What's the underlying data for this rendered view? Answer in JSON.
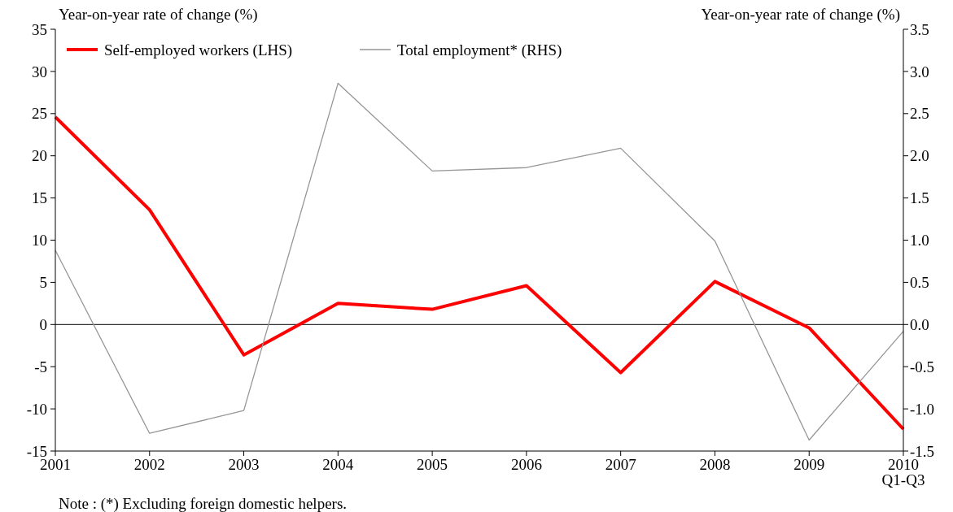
{
  "chart_data": {
    "type": "line",
    "categories": [
      "2001",
      "2002",
      "2003",
      "2004",
      "2005",
      "2006",
      "2007",
      "2008",
      "2009",
      "2010\nQ1-Q3"
    ],
    "series": [
      {
        "name": "Self-employed workers (LHS)",
        "color": "#ff0000",
        "values": [
          24.6,
          13.6,
          -3.6,
          2.5,
          1.8,
          4.6,
          -5.7,
          5.1,
          -0.4,
          -12.4
        ]
      },
      {
        "name": "Total employment* (RHS)",
        "color": "#969696",
        "axis": "y2",
        "values": [
          0.88,
          -1.29,
          -1.02,
          2.86,
          1.82,
          1.86,
          2.09,
          0.99,
          -1.37,
          -0.08
        ]
      }
    ],
    "ylabel": "Year-on-year rate of change (%)",
    "y2label": "Year-on-year rate of change (%)",
    "ylim": [
      -15,
      35
    ],
    "yticks": [
      -15,
      -10,
      -5,
      0,
      5,
      10,
      15,
      20,
      25,
      30,
      35
    ],
    "y2lim": [
      -1.5,
      3.5
    ],
    "y2ticks": [
      {
        "value": -1.5,
        "label": "-1.5"
      },
      {
        "value": -1,
        "label": "-1.0"
      },
      {
        "value": -0.5,
        "label": "-0.5"
      },
      {
        "value": 0,
        "label": "0.0"
      },
      {
        "value": 0.5,
        "label": "0.5"
      },
      {
        "value": 1,
        "label": "1.0"
      },
      {
        "value": 1.5,
        "label": "1.5"
      },
      {
        "value": 2,
        "label": "2.0"
      },
      {
        "value": 2.5,
        "label": "2.5"
      },
      {
        "value": 3,
        "label": "3.0"
      },
      {
        "value": 3.5,
        "label": "3.5"
      }
    ],
    "ref_lines": [
      {
        "axis": "y",
        "value": 0,
        "color": "#000000"
      }
    ],
    "grid": false,
    "legend": "top left",
    "marker": "none",
    "annotations": [
      "Note : (*) Excluding foreign domestic helpers."
    ]
  }
}
